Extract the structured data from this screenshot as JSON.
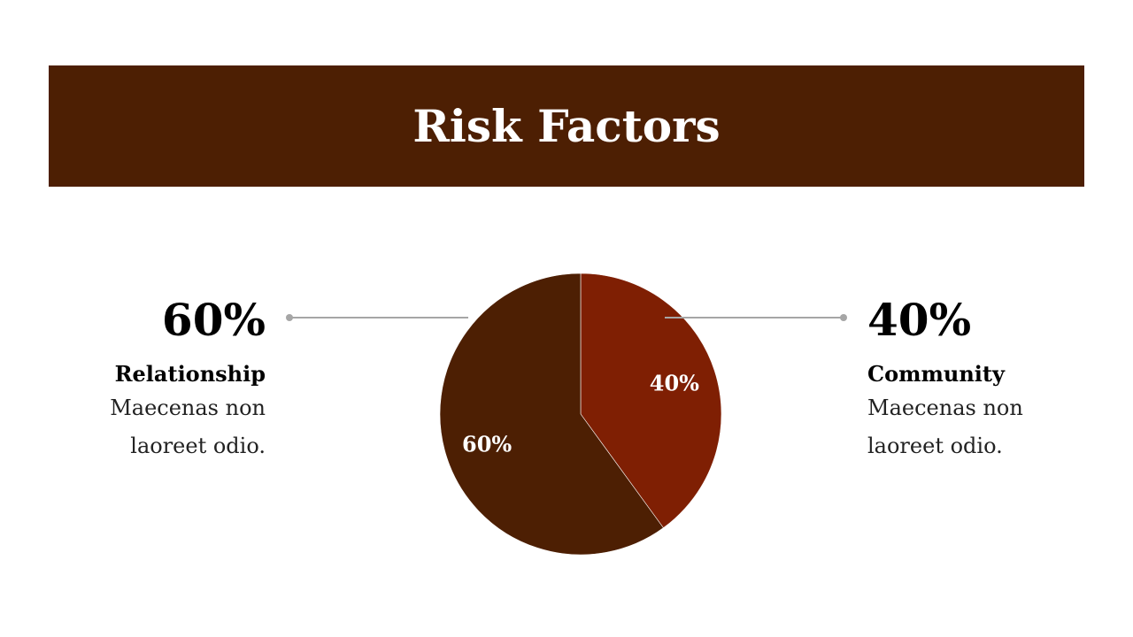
{
  "title": "Risk Factors",
  "colors": {
    "banner": "#4d1f03",
    "slice_dark": "#4d1f03",
    "slice_red": "#7f1f03",
    "connector": "#a6a6a6"
  },
  "left_stat": {
    "percent": "60%",
    "name": "Relationship",
    "description": "Maecenas non laoreet odio."
  },
  "right_stat": {
    "percent": "40%",
    "name": "Community",
    "description": "Maecenas non laoreet odio."
  },
  "chart_data": {
    "type": "pie",
    "slices": [
      {
        "label": "40%",
        "value": 40,
        "color": "#7f1f03"
      },
      {
        "label": "60%",
        "value": 60,
        "color": "#4d1f03"
      }
    ]
  }
}
